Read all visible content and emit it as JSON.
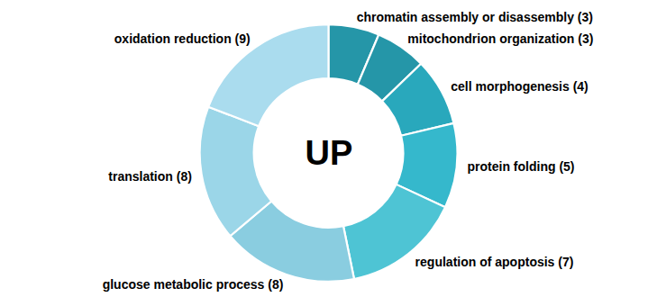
{
  "chart_data": {
    "type": "pie",
    "categories": [
      "chromatin assembly or disassembly (3)",
      "mitochondrion organization (3)",
      "cell morphogenesis (4)",
      "protein folding (5)",
      "regulation of apoptosis (7)",
      "glucose metabolic process (8)",
      "translation (8)",
      "oxidation reduction (9)"
    ],
    "values": [
      3,
      3,
      4,
      5,
      7,
      8,
      8,
      9
    ],
    "colors": [
      "#2596a8",
      "#2596a8",
      "#29a8bc",
      "#35b8cc",
      "#4ec4d4",
      "#8acde0",
      "#9bd6e8",
      "#aadcee"
    ],
    "annotations": [
      "UP"
    ]
  }
}
